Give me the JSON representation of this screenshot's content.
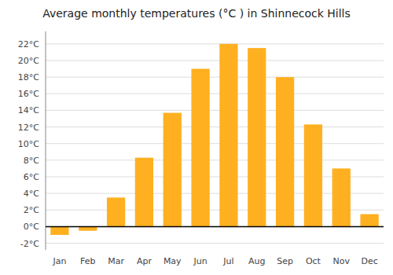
{
  "chart_data": {
    "type": "bar",
    "title": "Average monthly temperatures (°C ) in Shinnecock Hills",
    "categories": [
      "Jan",
      "Feb",
      "Mar",
      "Apr",
      "May",
      "Jun",
      "Jul",
      "Aug",
      "Sep",
      "Oct",
      "Nov",
      "Dec"
    ],
    "values": [
      -1.0,
      -0.5,
      3.5,
      8.3,
      13.7,
      19.0,
      22.0,
      21.5,
      18.0,
      12.3,
      7.0,
      1.5
    ],
    "color": "#FFB020",
    "ylim": [
      -2.8,
      23.5
    ],
    "yticks": [
      {
        "value": -2,
        "label": "-2°C"
      },
      {
        "value": 0,
        "label": "0°C"
      },
      {
        "value": 2,
        "label": "2°C"
      },
      {
        "value": 4,
        "label": "4°C"
      },
      {
        "value": 6,
        "label": "6°C"
      },
      {
        "value": 8,
        "label": "8°C"
      },
      {
        "value": 10,
        "label": "10°C"
      },
      {
        "value": 12,
        "label": "12°C"
      },
      {
        "value": 14,
        "label": "14°C"
      },
      {
        "value": 16,
        "label": "16°C"
      },
      {
        "value": 18,
        "label": "18°C"
      },
      {
        "value": 20,
        "label": "20°C"
      },
      {
        "value": 22,
        "label": "22°C"
      }
    ],
    "grid": true
  }
}
